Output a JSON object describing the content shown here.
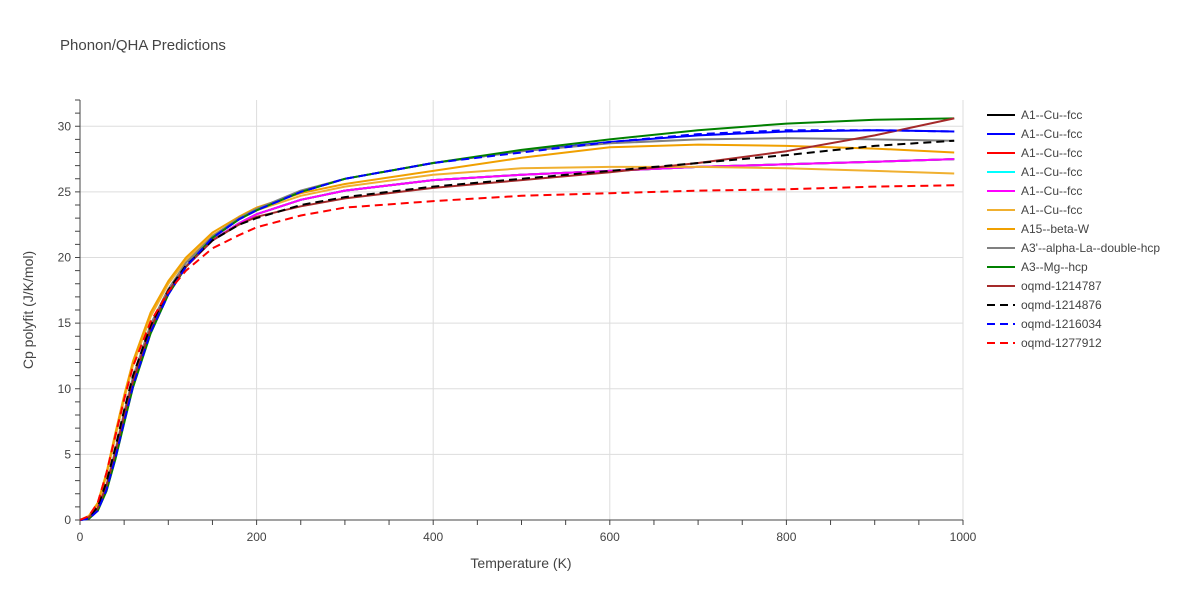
{
  "chart_data": {
    "type": "line",
    "title": "Phonon/QHA Predictions",
    "xlabel": "Temperature (K)",
    "ylabel": "Cp polyfit (J/K/mol)",
    "xlim": [
      0,
      1000
    ],
    "ylim": [
      0,
      32
    ],
    "xticks": [
      0,
      200,
      400,
      600,
      800,
      1000
    ],
    "yticks": [
      0,
      5,
      10,
      15,
      20,
      25,
      30
    ],
    "grid": true,
    "legend_position": "right",
    "series": [
      {
        "name": "A1--Cu--fcc",
        "color": "#000000",
        "dash": "solid",
        "x": [
          0,
          10,
          20,
          30,
          40,
          50,
          60,
          80,
          100,
          120,
          150,
          180,
          200,
          250,
          300,
          400,
          500,
          600,
          700,
          800,
          900,
          990
        ],
        "y": [
          0,
          0.2,
          0.9,
          2.6,
          5.1,
          8.0,
          10.6,
          14.6,
          17.4,
          19.3,
          21.3,
          22.6,
          23.3,
          24.4,
          25.1,
          25.9,
          26.3,
          26.6,
          26.9,
          27.1,
          27.3,
          27.5
        ]
      },
      {
        "name": "A1--Cu--fcc",
        "color": "#0000ff",
        "dash": "solid",
        "x": [
          0,
          10,
          20,
          30,
          40,
          50,
          60,
          80,
          100,
          120,
          150,
          180,
          200,
          250,
          300,
          400,
          500,
          600,
          700,
          800,
          900,
          990
        ],
        "y": [
          0,
          0.1,
          0.7,
          2.3,
          4.7,
          7.5,
          10.2,
          14.3,
          17.2,
          19.3,
          21.5,
          22.9,
          23.6,
          25.0,
          26.0,
          27.2,
          28.1,
          28.8,
          29.3,
          29.6,
          29.7,
          29.6
        ]
      },
      {
        "name": "A1--Cu--fcc",
        "color": "#ff0000",
        "dash": "solid",
        "x": [
          0,
          10,
          20,
          30,
          40,
          50,
          60,
          80,
          100,
          120,
          150,
          180,
          200,
          250,
          300,
          400,
          500,
          600,
          700,
          800,
          900,
          990
        ],
        "y": [
          0,
          0.2,
          0.9,
          2.6,
          5.1,
          8.0,
          10.6,
          14.6,
          17.4,
          19.3,
          21.3,
          22.6,
          23.3,
          24.4,
          25.1,
          25.9,
          26.3,
          26.6,
          26.9,
          27.1,
          27.3,
          27.5
        ]
      },
      {
        "name": "A1--Cu--fcc",
        "color": "#00ffff",
        "dash": "solid",
        "x": [
          0,
          10,
          20,
          30,
          40,
          50,
          60,
          80,
          100,
          120,
          150,
          180,
          200,
          250,
          300,
          400,
          500,
          600,
          700,
          800,
          900,
          990
        ],
        "y": [
          0,
          0.2,
          0.9,
          2.6,
          5.1,
          8.0,
          10.6,
          14.6,
          17.4,
          19.3,
          21.3,
          22.6,
          23.3,
          24.4,
          25.1,
          25.9,
          26.3,
          26.6,
          26.9,
          27.1,
          27.3,
          27.5
        ]
      },
      {
        "name": "A1--Cu--fcc",
        "color": "#ff00ff",
        "dash": "solid",
        "x": [
          0,
          10,
          20,
          30,
          40,
          50,
          60,
          80,
          100,
          120,
          150,
          180,
          200,
          250,
          300,
          400,
          500,
          600,
          700,
          800,
          900,
          990
        ],
        "y": [
          0,
          0.2,
          0.9,
          2.6,
          5.1,
          8.0,
          10.6,
          14.6,
          17.4,
          19.3,
          21.3,
          22.6,
          23.3,
          24.4,
          25.1,
          25.9,
          26.3,
          26.6,
          26.9,
          27.1,
          27.3,
          27.5
        ]
      },
      {
        "name": "A1--Cu--fcc",
        "color": "#f0b030",
        "dash": "solid",
        "x": [
          0,
          10,
          20,
          30,
          40,
          50,
          60,
          80,
          100,
          120,
          150,
          180,
          200,
          250,
          300,
          400,
          500,
          600,
          700,
          800,
          900,
          990
        ],
        "y": [
          0,
          0.3,
          1.2,
          3.4,
          6.3,
          9.2,
          11.8,
          15.5,
          18.0,
          19.8,
          21.7,
          22.9,
          23.6,
          24.7,
          25.4,
          26.3,
          26.8,
          26.9,
          26.9,
          26.8,
          26.6,
          26.4
        ]
      },
      {
        "name": "A15--beta-W",
        "color": "#f0a000",
        "dash": "solid",
        "x": [
          0,
          10,
          20,
          30,
          40,
          50,
          60,
          80,
          100,
          120,
          150,
          180,
          200,
          250,
          300,
          400,
          500,
          600,
          700,
          800,
          900,
          990
        ],
        "y": [
          0,
          0.3,
          1.3,
          3.6,
          6.6,
          9.5,
          12.1,
          15.8,
          18.2,
          20.0,
          21.9,
          23.1,
          23.8,
          24.9,
          25.6,
          26.6,
          27.6,
          28.4,
          28.6,
          28.5,
          28.3,
          28.0
        ]
      },
      {
        "name": "A3'--alpha-La--double-hcp",
        "color": "#808080",
        "dash": "solid",
        "x": [
          0,
          10,
          20,
          30,
          40,
          50,
          60,
          80,
          100,
          120,
          150,
          180,
          200,
          250,
          300,
          400,
          500,
          600,
          700,
          800,
          900,
          990
        ],
        "y": [
          0,
          0.2,
          0.9,
          2.7,
          5.3,
          8.2,
          10.9,
          14.9,
          17.6,
          19.6,
          21.6,
          23.0,
          23.7,
          25.1,
          26.0,
          27.2,
          28.1,
          28.7,
          29.0,
          29.1,
          29.0,
          28.9
        ]
      },
      {
        "name": "A3--Mg--hcp",
        "color": "#008000",
        "dash": "solid",
        "x": [
          0,
          10,
          20,
          30,
          40,
          50,
          60,
          80,
          100,
          120,
          150,
          180,
          200,
          250,
          300,
          400,
          500,
          600,
          700,
          800,
          900,
          990
        ],
        "y": [
          0,
          0.1,
          0.7,
          2.2,
          4.6,
          7.4,
          10.1,
          14.2,
          17.2,
          19.3,
          21.5,
          22.9,
          23.6,
          25.0,
          26.0,
          27.2,
          28.2,
          29.0,
          29.7,
          30.2,
          30.5,
          30.6
        ]
      },
      {
        "name": "oqmd-1214787",
        "color": "#a52a2a",
        "dash": "solid",
        "x": [
          0,
          10,
          20,
          30,
          40,
          50,
          60,
          80,
          100,
          120,
          150,
          180,
          200,
          250,
          300,
          400,
          500,
          600,
          700,
          800,
          900,
          990
        ],
        "y": [
          0,
          0.2,
          0.9,
          2.6,
          5.1,
          8.0,
          10.6,
          14.6,
          17.4,
          19.3,
          21.3,
          22.5,
          23.1,
          23.9,
          24.5,
          25.3,
          25.9,
          26.5,
          27.2,
          28.1,
          29.3,
          30.6
        ]
      },
      {
        "name": "oqmd-1214876",
        "color": "#000000",
        "dash": "dash",
        "x": [
          0,
          10,
          20,
          30,
          40,
          50,
          60,
          80,
          100,
          120,
          150,
          180,
          200,
          250,
          300,
          400,
          500,
          600,
          700,
          800,
          900,
          990
        ],
        "y": [
          0,
          0.2,
          1.0,
          2.9,
          5.5,
          8.4,
          11.0,
          14.8,
          17.5,
          19.4,
          21.3,
          22.5,
          23.0,
          24.0,
          24.6,
          25.4,
          26.0,
          26.6,
          27.2,
          27.8,
          28.5,
          28.9
        ]
      },
      {
        "name": "oqmd-1216034",
        "color": "#0000ff",
        "dash": "dash",
        "x": [
          0,
          10,
          20,
          30,
          40,
          50,
          60,
          80,
          100,
          120,
          150,
          180,
          200,
          250,
          300,
          400,
          500,
          600,
          700,
          800,
          900,
          990
        ],
        "y": [
          0,
          0.1,
          0.7,
          2.3,
          4.7,
          7.5,
          10.2,
          14.3,
          17.2,
          19.3,
          21.5,
          22.9,
          23.6,
          25.0,
          26.0,
          27.2,
          28.0,
          28.8,
          29.4,
          29.7,
          29.7,
          29.6
        ]
      },
      {
        "name": "oqmd-1277912",
        "color": "#ff0000",
        "dash": "dash",
        "x": [
          0,
          10,
          20,
          30,
          40,
          50,
          60,
          80,
          100,
          120,
          150,
          180,
          200,
          250,
          300,
          400,
          500,
          600,
          700,
          800,
          900,
          990
        ],
        "y": [
          0,
          0.3,
          1.3,
          3.6,
          6.4,
          9.2,
          11.7,
          15.1,
          17.4,
          19.0,
          20.7,
          21.7,
          22.3,
          23.2,
          23.8,
          24.3,
          24.7,
          24.9,
          25.1,
          25.2,
          25.4,
          25.5
        ]
      }
    ]
  }
}
